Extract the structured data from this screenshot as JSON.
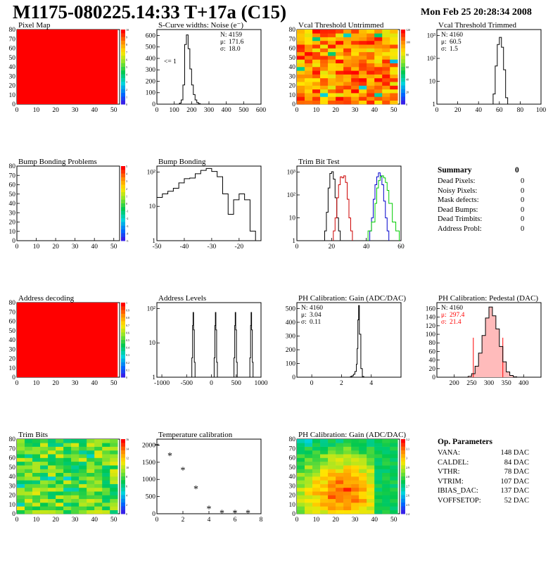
{
  "header": {
    "title": "M1175-080225.14:33 T+17a (C15)",
    "date": "Mon Feb 25 20:28:34 2008"
  },
  "colors": {
    "red": "#ff0000",
    "line": "#000000",
    "trim_red": "#cc0000",
    "trim_blue": "#0000cc",
    "trim_green": "#00cc00",
    "stat_red": "#ff0000"
  },
  "summary": {
    "title": "Summary",
    "value": "0",
    "rows": [
      {
        "label": "Dead Pixels:",
        "value": "0"
      },
      {
        "label": "Noisy Pixels:",
        "value": "0"
      },
      {
        "label": "Mask defects:",
        "value": "0"
      },
      {
        "label": "Dead Bumps:",
        "value": "0"
      },
      {
        "label": "Dead Trimbits:",
        "value": "0"
      },
      {
        "label": "Address Probl:",
        "value": "0"
      }
    ]
  },
  "op_params": {
    "title": "Op. Parameters",
    "rows": [
      {
        "label": "VANA:",
        "value": "148 DAC"
      },
      {
        "label": "CALDEL:",
        "value": "84 DAC"
      },
      {
        "label": "VTHR:",
        "value": "78 DAC"
      },
      {
        "label": "VTRIM:",
        "value": "107 DAC"
      },
      {
        "label": "IBIAS_DAC:",
        "value": "137 DAC"
      },
      {
        "label": "VOFFSETOP:",
        "value": "52 DAC"
      }
    ]
  },
  "chart_data": [
    {
      "id": "pixel-map",
      "type": "heatmap",
      "title": "Pixel Map",
      "pattern": "uniform-red",
      "xticks": [
        "0",
        "10",
        "20",
        "30",
        "40",
        "50"
      ],
      "yticks": [
        "0",
        "10",
        "20",
        "30",
        "40",
        "50",
        "60",
        "70",
        "80"
      ],
      "zticks": [
        "0",
        "1",
        "2",
        "3",
        "4",
        "5",
        "6",
        "7",
        "8",
        "9",
        "10"
      ]
    },
    {
      "id": "scurve-noise",
      "type": "line",
      "title": "S-Curve widths: Noise (e⁻)",
      "xticks": [
        "0",
        "100",
        "200",
        "300",
        "400",
        "500",
        "600"
      ],
      "yticks": [
        "0",
        "100",
        "200",
        "300",
        "400",
        "500",
        "600"
      ],
      "xlim": [
        0,
        600
      ],
      "ylim": [
        0,
        700
      ],
      "x": [
        130,
        140,
        150,
        160,
        170,
        180,
        190,
        200,
        210,
        220,
        230,
        240,
        250
      ],
      "values": [
        10,
        40,
        180,
        560,
        650,
        520,
        330,
        180,
        90,
        40,
        15,
        5,
        0
      ],
      "stats": [
        {
          "label": "N:",
          "value": "4159"
        },
        {
          "label": "μ:",
          "value": "171.6"
        },
        {
          "label": "σ:",
          "value": "18.0"
        }
      ],
      "annotation": "<= 1"
    },
    {
      "id": "vcal-untrimmed",
      "type": "heatmap",
      "title": "Vcal Threshold Untrimmed",
      "pattern": "noisy-warm",
      "xticks": [
        "0",
        "10",
        "20",
        "30",
        "40",
        "50"
      ],
      "yticks": [
        "0",
        "10",
        "20",
        "30",
        "40",
        "50",
        "60",
        "70",
        "80"
      ],
      "zticks": [
        "0",
        "20",
        "40",
        "60",
        "80",
        "100",
        "120"
      ]
    },
    {
      "id": "vcal-trimmed",
      "type": "line",
      "title": "Vcal Threshold Trimmed",
      "xticks": [
        "0",
        "20",
        "40",
        "60",
        "80",
        "100"
      ],
      "yticks": [
        "1",
        "10",
        "10²",
        "10³"
      ],
      "xlim": [
        0,
        100
      ],
      "ylim": [
        1,
        3000
      ],
      "log_y": true,
      "x": [
        54,
        56,
        58,
        60,
        62,
        64,
        66
      ],
      "values": [
        3,
        60,
        600,
        1300,
        450,
        40,
        2
      ],
      "stats": [
        {
          "label": "N:",
          "value": "4160"
        },
        {
          "label": "μ:",
          "value": "60.5"
        },
        {
          "label": "σ:",
          "value": "1.5"
        }
      ]
    },
    {
      "id": "bump-problems",
      "type": "heatmap",
      "title": "Bump Bonding Problems",
      "pattern": "empty",
      "xticks": [
        "0",
        "10",
        "20",
        "30",
        "40",
        "50"
      ],
      "yticks": [
        "0",
        "10",
        "20",
        "30",
        "40",
        "50",
        "60",
        "70",
        "80"
      ],
      "zticks": [
        "-5",
        "-4",
        "-3",
        "-2",
        "-1",
        "0",
        "1",
        "2",
        "3",
        "4",
        "5"
      ]
    },
    {
      "id": "bump-bonding",
      "type": "line",
      "title": "Bump Bonding",
      "xticks": [
        "-50",
        "-40",
        "-30",
        "-20"
      ],
      "yticks": [
        "1",
        "10",
        "10²"
      ],
      "xlim": [
        -50,
        -12
      ],
      "ylim": [
        0.4,
        500
      ],
      "log_y": true,
      "x": [
        -50,
        -48,
        -46,
        -44,
        -42,
        -40,
        -38,
        -36,
        -34,
        -32,
        -30,
        -28,
        -26,
        -24,
        -22,
        -20,
        -18,
        -16,
        -14
      ],
      "values": [
        25,
        35,
        45,
        60,
        100,
        150,
        160,
        240,
        330,
        400,
        300,
        180,
        35,
        5,
        20,
        35,
        20,
        1,
        0.4
      ]
    },
    {
      "id": "trim-bit-test",
      "type": "line",
      "title": "Trim Bit Test",
      "xticks": [
        "0",
        "20",
        "40",
        "60"
      ],
      "yticks": [
        "1",
        "10",
        "10²",
        "10³"
      ],
      "xlim": [
        0,
        60
      ],
      "ylim": [
        0.3,
        3000
      ],
      "log_y": true,
      "series": [
        {
          "color": "#000000",
          "x": [
            16,
            17,
            18,
            19,
            20,
            21,
            22,
            23,
            24
          ],
          "values": [
            1,
            10,
            200,
            1200,
            1500,
            600,
            60,
            5,
            1
          ]
        },
        {
          "color": "#cc0000",
          "x": [
            21,
            22,
            23,
            24,
            25,
            26,
            27,
            28,
            29,
            30,
            31
          ],
          "values": [
            1,
            5,
            60,
            300,
            800,
            700,
            900,
            400,
            50,
            5,
            1
          ]
        },
        {
          "color": "#0000cc",
          "x": [
            42,
            43,
            44,
            45,
            46,
            47,
            48,
            49,
            50,
            51,
            52
          ],
          "values": [
            1,
            5,
            50,
            300,
            800,
            1300,
            900,
            300,
            40,
            5,
            1
          ]
        },
        {
          "color": "#00cc00",
          "x": [
            41,
            43,
            45,
            46,
            47,
            48,
            49,
            50,
            51,
            52,
            53,
            55,
            57
          ],
          "values": [
            1,
            3,
            30,
            200,
            500,
            800,
            900,
            700,
            400,
            150,
            30,
            3,
            1
          ]
        }
      ]
    },
    {
      "id": "address-decoding",
      "type": "heatmap",
      "title": "Address decoding",
      "pattern": "uniform-red",
      "xticks": [
        "0",
        "10",
        "20",
        "30",
        "40",
        "50"
      ],
      "yticks": [
        "0",
        "10",
        "20",
        "30",
        "40",
        "50",
        "60",
        "70",
        "80"
      ],
      "zticks": [
        "0",
        "0.1",
        "0.2",
        "0.3",
        "0.4",
        "0.5",
        "0.6",
        "0.7",
        "0.8",
        "0.9",
        "1"
      ]
    },
    {
      "id": "address-levels",
      "type": "line",
      "title": "Address Levels",
      "xticks": [
        "-1000",
        "-500",
        "0",
        "500",
        "1000"
      ],
      "yticks": [
        "1",
        "10",
        "10²"
      ],
      "xlim": [
        -1100,
        1000
      ],
      "ylim": [
        0.5,
        500
      ],
      "log_y": true,
      "peaks": [
        -370,
        80,
        480,
        800
      ]
    },
    {
      "id": "ph-gain",
      "type": "line",
      "title": "PH Calibration: Gain (ADC/DAC)",
      "xticks": [
        "0",
        "2",
        "4"
      ],
      "yticks": [
        "0",
        "100",
        "200",
        "300",
        "400",
        "500"
      ],
      "xlim": [
        -1,
        6
      ],
      "ylim": [
        0,
        520
      ],
      "x": [
        2.6,
        2.7,
        2.8,
        2.9,
        3.0,
        3.05,
        3.1,
        3.15,
        3.2,
        3.3,
        3.4
      ],
      "values": [
        5,
        10,
        20,
        40,
        90,
        200,
        400,
        500,
        300,
        60,
        5
      ],
      "stats": [
        {
          "label": "N:",
          "value": "4160"
        },
        {
          "label": "μ:",
          "value": "3.04"
        },
        {
          "label": "σ:",
          "value": "0.11"
        }
      ]
    },
    {
      "id": "ph-pedestal",
      "type": "line",
      "title": "PH Calibration: Pedestal (DAC)",
      "xticks": [
        "200",
        "250",
        "300",
        "350",
        "400"
      ],
      "yticks": [
        "0",
        "20",
        "40",
        "60",
        "80",
        "100",
        "120",
        "140",
        "160"
      ],
      "xlim": [
        150,
        450
      ],
      "ylim": [
        0,
        170
      ],
      "x": [
        240,
        250,
        260,
        270,
        280,
        290,
        300,
        310,
        320,
        330,
        340,
        350,
        360,
        370
      ],
      "values": [
        2,
        8,
        25,
        55,
        95,
        135,
        160,
        140,
        110,
        70,
        35,
        12,
        4,
        1
      ],
      "stats": [
        {
          "label": "N:",
          "value": "4160"
        },
        {
          "label": "μ:",
          "value": "297.4"
        },
        {
          "label": "σ:",
          "value": "21.4"
        }
      ],
      "markers": [
        255,
        340
      ]
    },
    {
      "id": "trim-bits",
      "type": "heatmap",
      "title": "Trim Bits",
      "pattern": "noisy-green",
      "xticks": [
        "0",
        "10",
        "20",
        "30",
        "40",
        "50"
      ],
      "yticks": [
        "0",
        "10",
        "20",
        "30",
        "40",
        "50",
        "60",
        "70",
        "80"
      ],
      "zticks": [
        "0",
        "2",
        "4",
        "6",
        "8",
        "10",
        "12",
        "14",
        "16"
      ]
    },
    {
      "id": "temperature-calibration",
      "type": "scatter",
      "title": "Temperature calibration",
      "xticks": [
        "0",
        "2",
        "4",
        "6",
        "8"
      ],
      "yticks": [
        "0",
        "500",
        "1000",
        "1500",
        "2000"
      ],
      "xlim": [
        0,
        8
      ],
      "ylim": [
        0,
        2200
      ],
      "x": [
        0,
        1,
        2,
        3,
        4,
        5,
        6,
        7
      ],
      "values": [
        2000,
        1720,
        1300,
        750,
        160,
        30,
        30,
        30
      ]
    },
    {
      "id": "ph-gain-map",
      "type": "heatmap",
      "title": "PH Calibration: Gain (ADC/DAC)",
      "pattern": "ph-gain",
      "xticks": [
        "0",
        "10",
        "20",
        "30",
        "40",
        "50"
      ],
      "yticks": [
        "0",
        "10",
        "20",
        "30",
        "40",
        "50",
        "60",
        "70",
        "80"
      ],
      "zticks": [
        "2.4",
        "2.5",
        "2.6",
        "2.7",
        "2.8",
        "2.9",
        "3",
        "3.1",
        "3.2"
      ]
    }
  ]
}
